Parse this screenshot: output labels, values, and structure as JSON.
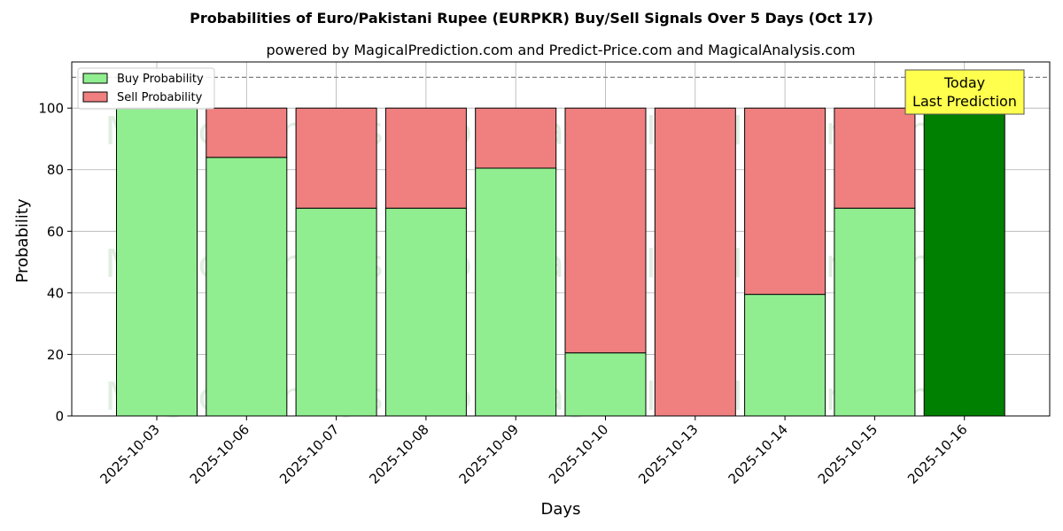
{
  "chart_data": {
    "type": "bar",
    "stacked": true,
    "title": "Probabilities of Euro/Pakistani Rupee (EURPKR) Buy/Sell Signals Over 5 Days (Oct 17)",
    "subtitle": "powered by MagicalPrediction.com and Predict-Price.com and MagicalAnalysis.com",
    "xlabel": "Days",
    "ylabel": "Probability",
    "ylim": [
      0,
      115
    ],
    "yticks": [
      0,
      20,
      40,
      60,
      80,
      100
    ],
    "grid": true,
    "legend_position": "top-left",
    "categories": [
      "2025-10-03",
      "2025-10-06",
      "2025-10-07",
      "2025-10-08",
      "2025-10-09",
      "2025-10-10",
      "2025-10-13",
      "2025-10-14",
      "2025-10-15",
      "2025-10-16"
    ],
    "series": [
      {
        "name": "Buy Probability",
        "color": "#90ee90",
        "values": [
          100,
          84,
          67.5,
          67.5,
          80.5,
          20.5,
          0,
          39.5,
          67.5,
          100
        ]
      },
      {
        "name": "Sell Probability",
        "color": "#f08080",
        "values": [
          0,
          16,
          32.5,
          32.5,
          19.5,
          79.5,
          100,
          60.5,
          32.5,
          0
        ]
      }
    ],
    "highlight": {
      "index": 9,
      "color": "#008000"
    },
    "reference_line": {
      "y": 110,
      "style": "dashed"
    },
    "annotation": {
      "lines": [
        "Today",
        "Last Prediction"
      ],
      "background": "#ffff4d"
    },
    "watermarks": [
      "MagicalAnalysis.com",
      "MagicalPrediction.com"
    ]
  }
}
